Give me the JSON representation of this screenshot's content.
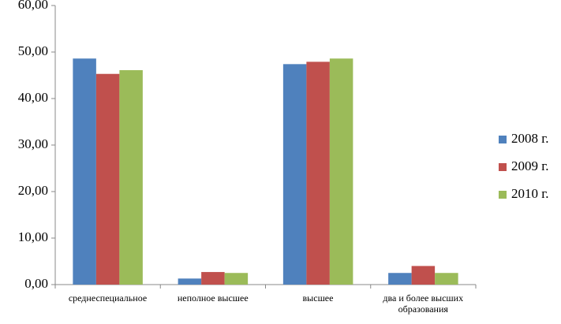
{
  "chart_data": {
    "type": "bar",
    "categories": [
      "среднеспециальное",
      "неполное высшее",
      "высшее",
      "два и более высших образования"
    ],
    "series": [
      {
        "name": "2008 г.",
        "color": "#4f81bd",
        "values": [
          48.6,
          1.3,
          47.4,
          2.5
        ]
      },
      {
        "name": "2009 г.",
        "color": "#c0504d",
        "values": [
          45.3,
          2.7,
          47.9,
          4.0
        ]
      },
      {
        "name": "2010 г.",
        "color": "#9bbb59",
        "values": [
          46.1,
          2.5,
          48.6,
          2.5
        ]
      }
    ],
    "ylim": [
      0,
      60
    ],
    "yticks": [
      {
        "value": 0,
        "label": "0,00"
      },
      {
        "value": 10,
        "label": "10,00"
      },
      {
        "value": 20,
        "label": "20,00"
      },
      {
        "value": 30,
        "label": "30,00"
      },
      {
        "value": 40,
        "label": "40,00"
      },
      {
        "value": 50,
        "label": "50,00"
      },
      {
        "value": 60,
        "label": "60,00"
      }
    ],
    "legend": "right"
  }
}
